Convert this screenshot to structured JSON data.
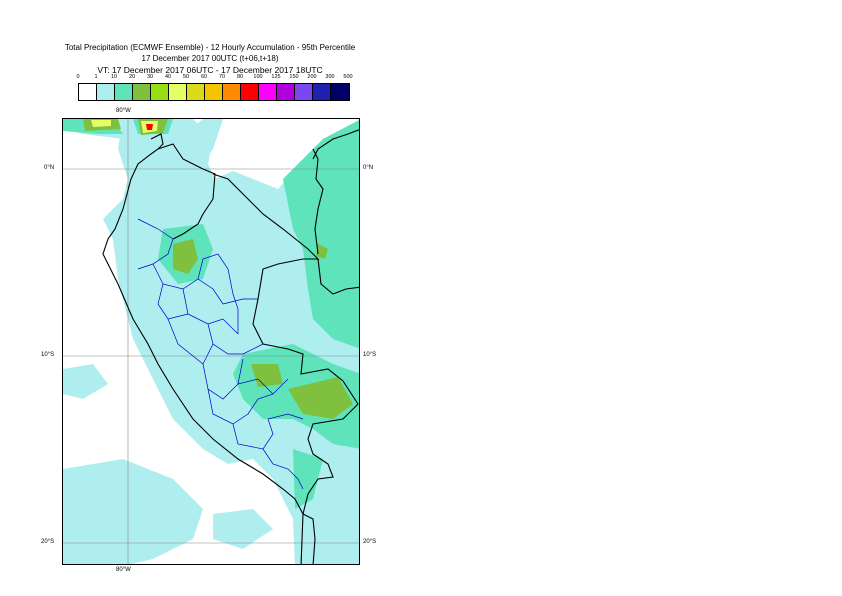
{
  "header": {
    "title": "Total Precipitation (ECMWF Ensemble) - 12 Hourly Accumulation - 95th Percentile",
    "base_time": "17 December 2017 00UTC (t+06,t+18)",
    "valid_time": "VT: 17 December 2017 06UTC - 17 December 2017 18UTC"
  },
  "legend": {
    "ticks": [
      "0",
      "1",
      "10",
      "20",
      "30",
      "40",
      "50",
      "60",
      "70",
      "80",
      "100",
      "125",
      "150",
      "200",
      "300",
      "500"
    ],
    "colors": [
      "#ffffff",
      "#aeeeee",
      "#5ee3bb",
      "#7fc13e",
      "#98e011",
      "#e4ff66",
      "#dbdb1c",
      "#f6c300",
      "#ff8c00",
      "#ff0000",
      "#ff00ff",
      "#b000dc",
      "#7b47ef",
      "#2121b1",
      "#000066"
    ]
  },
  "map": {
    "graticule_labels": {
      "top_lon": "80°W",
      "bottom_lon": "80°W",
      "left_lat": [
        "0°N",
        "10°S",
        "20°S"
      ],
      "right_lat": [
        "0°N",
        "10°S",
        "20°S"
      ]
    },
    "colors": {
      "ocean": "#ffffff",
      "light": "#aeeeee",
      "medium": "#5ee3bb",
      "green": "#7fc13e",
      "yellow": "#e4ff66",
      "red": "#ff0000",
      "orange": "#f6c300"
    }
  }
}
